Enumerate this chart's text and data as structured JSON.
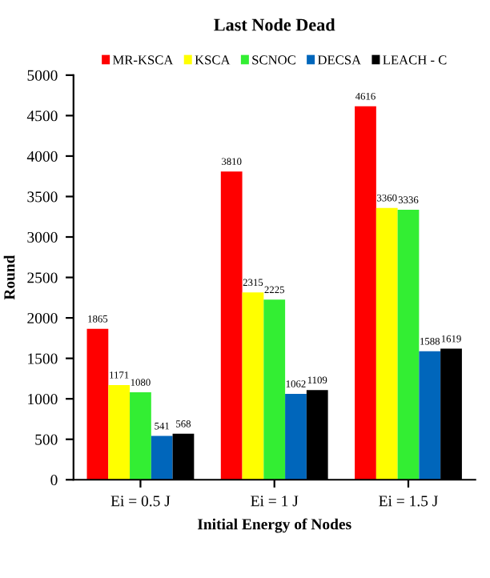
{
  "chart_data": {
    "type": "bar",
    "title": "Last Node Dead",
    "xlabel": "Initial Energy of Nodes",
    "ylabel": "Round",
    "categories": [
      "Ei = 0.5 J",
      "Ei = 1 J",
      "Ei = 1.5 J"
    ],
    "series": [
      {
        "name": "MR-KSCA",
        "color": "#ff0000",
        "values": [
          1865,
          3810,
          4616
        ]
      },
      {
        "name": "KSCA",
        "color": "#ffff00",
        "values": [
          1171,
          2315,
          3360
        ]
      },
      {
        "name": "SCNOC",
        "color": "#33ee33",
        "values": [
          1080,
          2225,
          3336
        ]
      },
      {
        "name": "DECSA",
        "color": "#0066bb",
        "values": [
          541,
          1062,
          1588
        ]
      },
      {
        "name": "LEACH - C",
        "color": "#000000",
        "values": [
          568,
          1109,
          1619
        ]
      }
    ],
    "ylim": [
      0,
      5000
    ],
    "yticks": [
      0,
      500,
      1000,
      1500,
      2000,
      2500,
      3000,
      3500,
      4000,
      4500,
      5000
    ],
    "grid": false,
    "legend": "top",
    "data_labels": true
  }
}
